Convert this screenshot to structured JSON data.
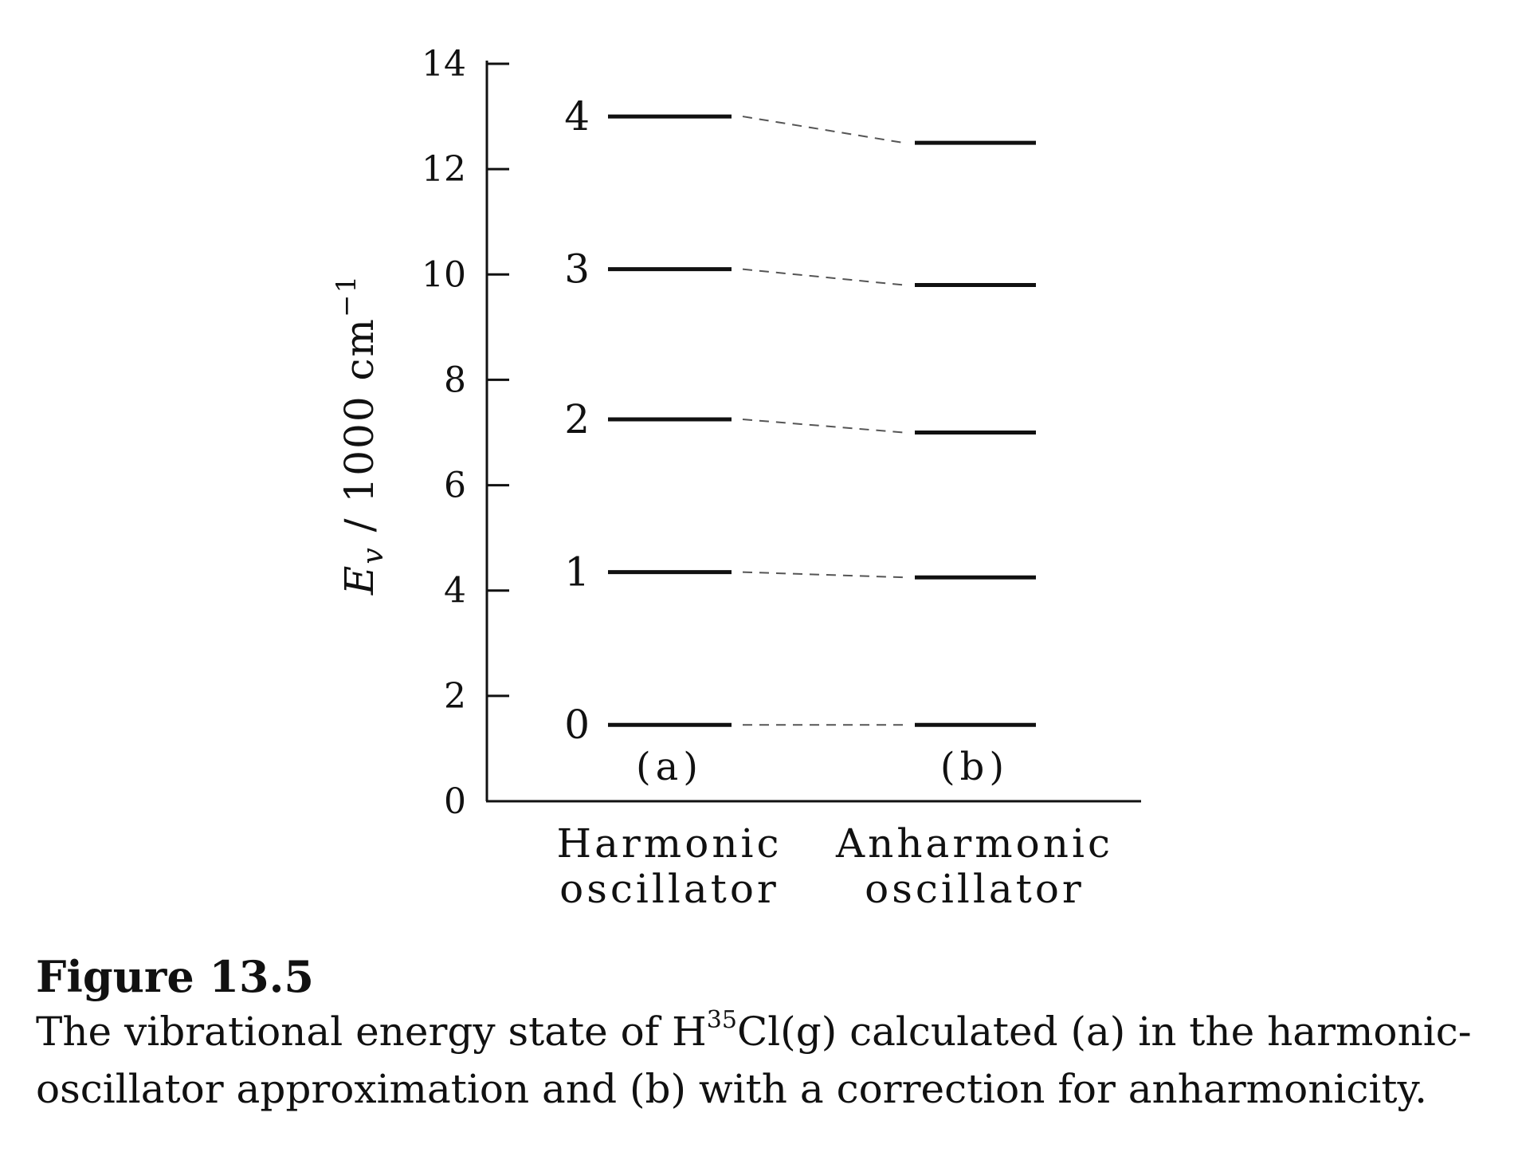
{
  "chart_data": {
    "type": "energy-level diagram",
    "ylabel": {
      "main": "E",
      "sub": "v",
      "unit": " / 1000 cm",
      "sup": "−1"
    },
    "ylim": [
      0,
      14
    ],
    "yticks": [
      "0",
      "2",
      "4",
      "6",
      "8",
      "10",
      "12",
      "14"
    ],
    "levels": [
      "0",
      "1",
      "2",
      "3",
      "4"
    ],
    "columns": [
      {
        "label": "(a)",
        "category": [
          "Harmonic",
          "oscillator"
        ],
        "values": [
          1.45,
          4.35,
          7.25,
          10.1,
          13.0
        ]
      },
      {
        "label": "(b)",
        "category": [
          "Anharmonic",
          "oscillator"
        ],
        "values": [
          1.45,
          4.25,
          7.0,
          9.8,
          12.5
        ]
      }
    ],
    "connectors": "dashed"
  },
  "caption": {
    "title": "Figure 13.5",
    "line1_before": "The vibrational energy state of H",
    "line1_sup": "35",
    "line1_after": "Cl(g) calculated (a) in the harmonic-",
    "line2": "oscillator approximation and (b) with a correction for anharmonicity."
  }
}
